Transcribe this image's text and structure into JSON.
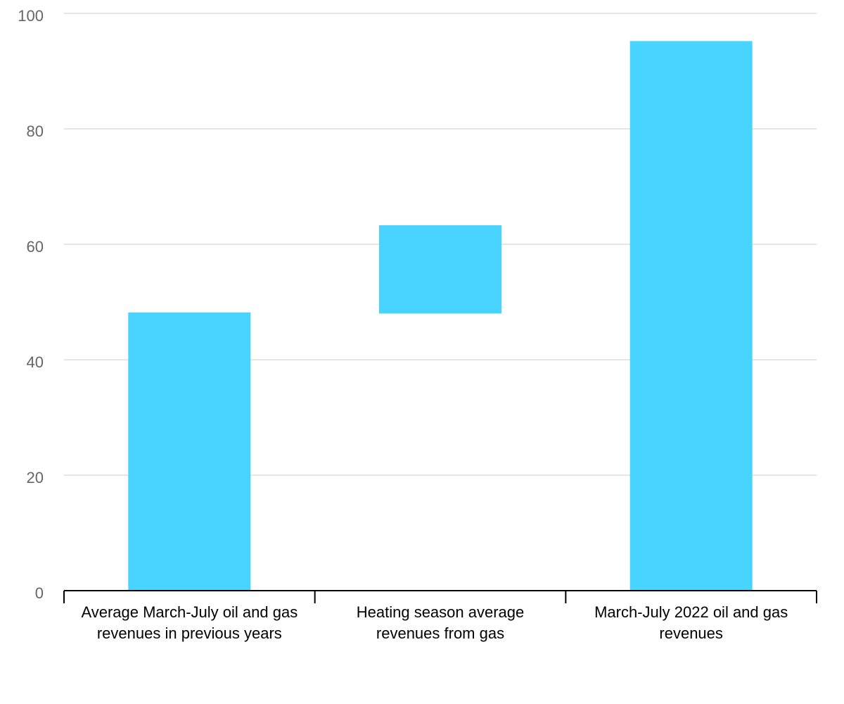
{
  "chart_data": {
    "type": "bar",
    "subtype": "waterfall",
    "title": "",
    "xlabel": "",
    "ylabel": "",
    "ylim": [
      0,
      100
    ],
    "yticks": [
      0,
      20,
      40,
      60,
      80,
      100
    ],
    "ytick_labels": [
      "0",
      "20",
      "40",
      "60",
      "80",
      "100"
    ],
    "grid": true,
    "legend": "none",
    "bar_color": "#48d4ff",
    "categories": [
      "Average March-July oil and gas revenues in previous years",
      "Heating season average revenues from gas",
      "March-July 2022 oil and gas revenues"
    ],
    "bars": [
      {
        "base": 0,
        "top": 48.2
      },
      {
        "base": 48.0,
        "top": 63.3
      },
      {
        "base": 0,
        "top": 95.2
      }
    ]
  }
}
